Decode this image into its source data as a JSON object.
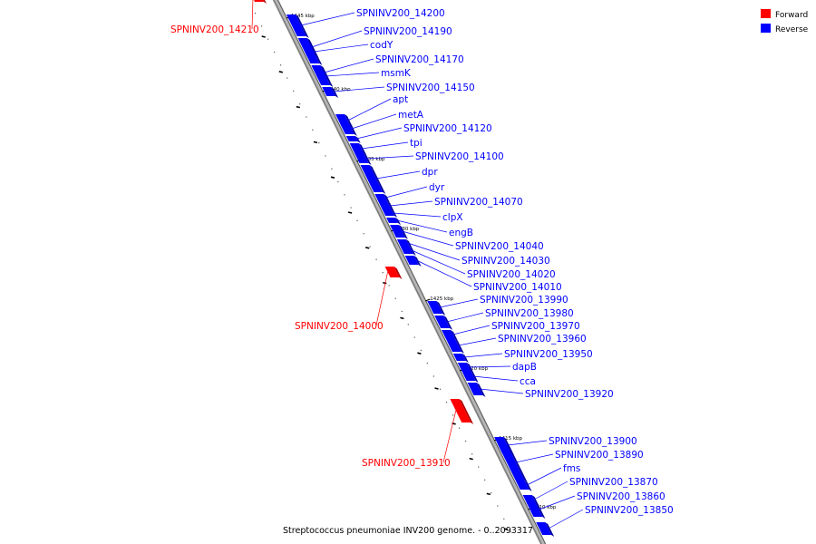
{
  "colors": {
    "forward": "#ff0000",
    "reverse": "#0000ff",
    "backbone": "#9a9a9a"
  },
  "legend": {
    "forward_label": "Forward",
    "reverse_label": "Reverse"
  },
  "caption": "Streptococcus pneumoniae INV200 genome. - 0..2093317",
  "ticks": [
    {
      "label": "1445 kbp",
      "kbp": 1445
    },
    {
      "label": "1440 kbp",
      "kbp": 1440
    },
    {
      "label": "1435 kbp",
      "kbp": 1435
    },
    {
      "label": "1430 kbp",
      "kbp": 1430
    },
    {
      "label": "1425 kbp",
      "kbp": 1425
    },
    {
      "label": "1420 kbp",
      "kbp": 1420
    },
    {
      "label": "1415 kbp",
      "kbp": 1415
    },
    {
      "label": "1410 kbp",
      "kbp": 1410
    }
  ],
  "genes": [
    {
      "name": "SPNINV200_14210",
      "strand": "forward"
    },
    {
      "name": "SPNINV200_14200",
      "strand": "reverse"
    },
    {
      "name": "SPNINV200_14190",
      "strand": "reverse"
    },
    {
      "name": "codY",
      "strand": "reverse"
    },
    {
      "name": "SPNINV200_14170",
      "strand": "reverse"
    },
    {
      "name": "msmK",
      "strand": "reverse"
    },
    {
      "name": "SPNINV200_14150",
      "strand": "reverse"
    },
    {
      "name": "apt",
      "strand": "reverse"
    },
    {
      "name": "metA",
      "strand": "reverse"
    },
    {
      "name": "SPNINV200_14120",
      "strand": "reverse"
    },
    {
      "name": "tpi",
      "strand": "reverse"
    },
    {
      "name": "SPNINV200_14100",
      "strand": "reverse"
    },
    {
      "name": "dpr",
      "strand": "reverse"
    },
    {
      "name": "dyr",
      "strand": "reverse"
    },
    {
      "name": "SPNINV200_14070",
      "strand": "reverse"
    },
    {
      "name": "clpX",
      "strand": "reverse"
    },
    {
      "name": "engB",
      "strand": "reverse"
    },
    {
      "name": "SPNINV200_14040",
      "strand": "reverse"
    },
    {
      "name": "SPNINV200_14030",
      "strand": "reverse"
    },
    {
      "name": "SPNINV200_14020",
      "strand": "reverse"
    },
    {
      "name": "SPNINV200_14010",
      "strand": "reverse"
    },
    {
      "name": "SPNINV200_14000",
      "strand": "forward"
    },
    {
      "name": "SPNINV200_13990",
      "strand": "reverse"
    },
    {
      "name": "SPNINV200_13980",
      "strand": "reverse"
    },
    {
      "name": "SPNINV200_13970",
      "strand": "reverse"
    },
    {
      "name": "SPNINV200_13960",
      "strand": "reverse"
    },
    {
      "name": "SPNINV200_13950",
      "strand": "reverse"
    },
    {
      "name": "dapB",
      "strand": "reverse"
    },
    {
      "name": "cca",
      "strand": "reverse"
    },
    {
      "name": "SPNINV200_13920",
      "strand": "reverse"
    },
    {
      "name": "SPNINV200_13910",
      "strand": "forward"
    },
    {
      "name": "SPNINV200_13900",
      "strand": "reverse"
    },
    {
      "name": "SPNINV200_13890",
      "strand": "reverse"
    },
    {
      "name": "fms",
      "strand": "reverse"
    },
    {
      "name": "SPNINV200_13870",
      "strand": "reverse"
    },
    {
      "name": "SPNINV200_13860",
      "strand": "reverse"
    },
    {
      "name": "SPNINV200_13850",
      "strand": "reverse"
    }
  ]
}
